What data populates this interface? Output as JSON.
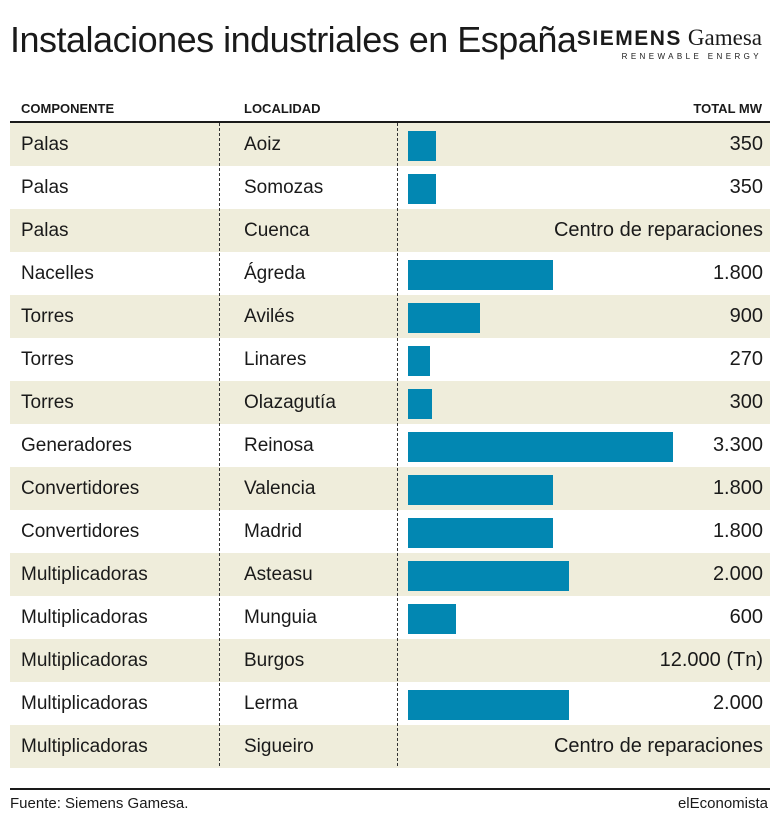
{
  "title": "Instalaciones industriales en España",
  "logo": {
    "brand": "SIEMENS",
    "name": "Gamesa",
    "tagline": "RENEWABLE ENERGY"
  },
  "headers": {
    "component": "COMPONENTE",
    "location": "LOCALIDAD",
    "total": "TOTAL MW"
  },
  "footer": {
    "source": "Fuente: Siemens Gamesa.",
    "brand": "elEconomista"
  },
  "colors": {
    "bar": "#0287b2",
    "stripe": "#efeddb"
  },
  "chart_data": {
    "type": "bar",
    "orientation": "horizontal",
    "title": "Instalaciones industriales en España",
    "ylabel": "TOTAL MW",
    "xlim": [
      0,
      3300
    ],
    "rows": [
      {
        "component": "Palas",
        "location": "Aoiz",
        "value": 350,
        "label": "350"
      },
      {
        "component": "Palas",
        "location": "Somozas",
        "value": 350,
        "label": "350"
      },
      {
        "component": "Palas",
        "location": "Cuenca",
        "value": null,
        "label": "Centro de reparaciones"
      },
      {
        "component": "Nacelles",
        "location": "Ágreda",
        "value": 1800,
        "label": "1.800"
      },
      {
        "component": "Torres",
        "location": "Avilés",
        "value": 900,
        "label": "900"
      },
      {
        "component": "Torres",
        "location": "Linares",
        "value": 270,
        "label": "270"
      },
      {
        "component": "Torres",
        "location": "Olazagutía",
        "value": 300,
        "label": "300"
      },
      {
        "component": "Generadores",
        "location": "Reinosa",
        "value": 3300,
        "label": "3.300"
      },
      {
        "component": "Convertidores",
        "location": "Valencia",
        "value": 1800,
        "label": "1.800"
      },
      {
        "component": "Convertidores",
        "location": "Madrid",
        "value": 1800,
        "label": "1.800"
      },
      {
        "component": "Multiplicadoras",
        "location": "Asteasu",
        "value": 2000,
        "label": "2.000"
      },
      {
        "component": "Multiplicadoras",
        "location": "Munguia",
        "value": 600,
        "label": "600"
      },
      {
        "component": "Multiplicadoras",
        "location": "Burgos",
        "value": null,
        "label": "12.000 (Tn)"
      },
      {
        "component": "Multiplicadoras",
        "location": "Lerma",
        "value": 2000,
        "label": "2.000"
      },
      {
        "component": "Multiplicadoras",
        "location": "Sigueiro",
        "value": null,
        "label": "Centro de reparaciones"
      }
    ]
  }
}
